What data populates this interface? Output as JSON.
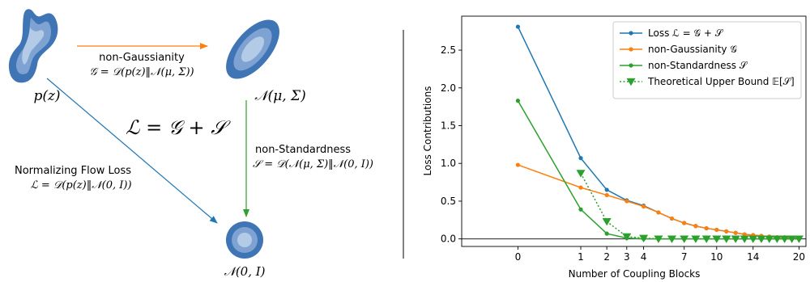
{
  "left_diagram": {
    "nodes": {
      "pz": "p(z)",
      "gauss": "𝒩(μ, Σ)",
      "std": "𝒩(0, I)"
    },
    "central_formula": "ℒ = 𝒢 + 𝒮",
    "arrows": {
      "non_gaussianity": {
        "label": "non-Gaussianity",
        "formula": "𝒢 = 𝒟(p(z)‖𝒩(μ, Σ))",
        "color": "#ff7f0e"
      },
      "non_standardness": {
        "label": "non-Standardness",
        "formula": "𝒮 = 𝒟(𝒩(μ, Σ)‖𝒩(0, I))",
        "color": "#2ca02c"
      },
      "flow_loss": {
        "label": "Normalizing Flow Loss",
        "formula": "ℒ = 𝒟(p(z)‖𝒩(0, I))",
        "color": "#1f77b4"
      }
    },
    "blob_colors": [
      "#3f74b5",
      "#7ea3d3",
      "#b4cbe8"
    ]
  },
  "chart_data": {
    "type": "line",
    "xlabel": "Number of Coupling Blocks",
    "ylabel": "Loss Contributions",
    "xscale": "sqrt",
    "xlim": [
      -0.8,
      21.0
    ],
    "ylim": [
      -0.1,
      2.95
    ],
    "xticks": [
      0,
      1,
      2,
      3,
      4,
      7,
      10,
      14,
      20
    ],
    "yticks": [
      0.0,
      0.5,
      1.0,
      1.5,
      2.0,
      2.5
    ],
    "ytick_labels": [
      "0.0",
      "0.5",
      "1.0",
      "1.5",
      "2.0",
      "2.5"
    ],
    "hline": 0,
    "legend_location": "upper-right",
    "series": [
      {
        "name": "Loss ℒ = 𝒢 + 𝒮",
        "color": "#1f77b4",
        "marker": "circle",
        "style": "solid",
        "x": [
          0,
          1,
          2,
          3,
          4,
          5,
          6,
          7,
          8,
          9,
          10,
          11,
          12,
          13,
          14,
          15,
          16,
          17,
          18,
          19,
          20
        ],
        "y": [
          2.81,
          1.07,
          0.65,
          0.51,
          0.44,
          0.35,
          0.27,
          0.21,
          0.17,
          0.14,
          0.12,
          0.1,
          0.08,
          0.06,
          0.05,
          0.04,
          0.03,
          0.02,
          0.02,
          0.01,
          0.01
        ]
      },
      {
        "name": "non-Gaussianity 𝒢",
        "color": "#ff7f0e",
        "marker": "circle",
        "style": "solid",
        "x": [
          0,
          1,
          2,
          3,
          4,
          5,
          6,
          7,
          8,
          9,
          10,
          11,
          12,
          13,
          14,
          15,
          16,
          17,
          18,
          19,
          20
        ],
        "y": [
          0.98,
          0.68,
          0.58,
          0.5,
          0.43,
          0.35,
          0.27,
          0.21,
          0.17,
          0.14,
          0.12,
          0.1,
          0.08,
          0.06,
          0.05,
          0.04,
          0.03,
          0.02,
          0.02,
          0.01,
          0.01
        ]
      },
      {
        "name": "non-Standardness 𝒮",
        "color": "#2ca02c",
        "marker": "circle",
        "style": "solid",
        "x": [
          0,
          1,
          2,
          3,
          4,
          5,
          6,
          7,
          8,
          9,
          10,
          11,
          12,
          13,
          14,
          15,
          16,
          17,
          18,
          19,
          20
        ],
        "y": [
          1.83,
          0.39,
          0.07,
          0.01,
          0.0,
          0.0,
          0.0,
          0.0,
          0.0,
          0.0,
          0.0,
          0.0,
          0.0,
          0.0,
          0.0,
          0.0,
          0.0,
          0.0,
          0.0,
          0.0,
          0.0
        ]
      },
      {
        "name": "Theoretical Upper Bound 𝔼[𝒮]",
        "color": "#2ca02c",
        "marker": "triangle-down",
        "style": "dotted",
        "x": [
          1,
          2,
          3,
          4,
          5,
          6,
          7,
          8,
          9,
          10,
          11,
          12,
          13,
          14,
          15,
          16,
          17,
          18,
          19,
          20
        ],
        "y": [
          0.87,
          0.23,
          0.03,
          0.01,
          0.0,
          0.0,
          0.0,
          0.0,
          0.0,
          0.0,
          0.0,
          0.0,
          0.0,
          0.0,
          0.0,
          0.0,
          0.0,
          0.0,
          0.0,
          0.0
        ]
      }
    ]
  }
}
